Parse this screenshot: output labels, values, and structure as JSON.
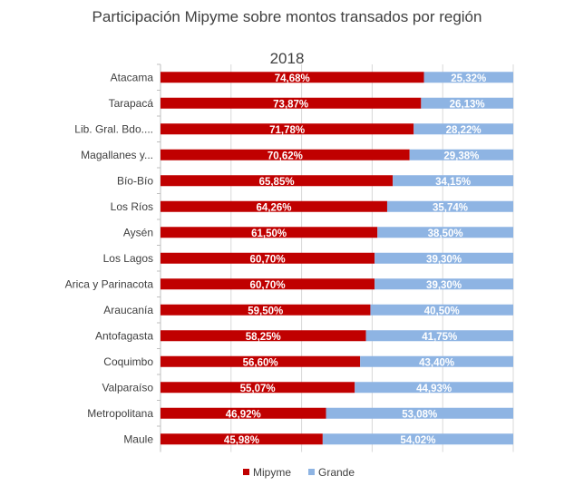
{
  "chart_data": {
    "type": "bar",
    "orientation": "horizontal",
    "stacked": "100%",
    "title": "Participación Mipyme sobre montos transados por región",
    "subtitle": "2018",
    "categories": [
      "Atacama",
      "Tarapacá",
      "Lib. Gral. Bdo....",
      "Magallanes y...",
      "Bío-Bío",
      "Los Ríos",
      "Aysén",
      "Los Lagos",
      "Arica y Parinacota",
      "Araucanía",
      "Antofagasta",
      "Coquimbo",
      "Valparaíso",
      "Metropolitana",
      "Maule"
    ],
    "series": [
      {
        "name": "Mipyme",
        "color": "#C00000",
        "values": [
          74.68,
          73.87,
          71.78,
          70.62,
          65.85,
          64.26,
          61.5,
          60.7,
          60.7,
          59.5,
          58.25,
          56.6,
          55.07,
          46.92,
          45.98
        ],
        "labels": [
          "74,68%",
          "73,87%",
          "71,78%",
          "70,62%",
          "65,85%",
          "64,26%",
          "61,50%",
          "60,70%",
          "60,70%",
          "59,50%",
          "58,25%",
          "56,60%",
          "55,07%",
          "46,92%",
          "45,98%"
        ]
      },
      {
        "name": "Grande",
        "color": "#8EB4E3",
        "values": [
          25.32,
          26.13,
          28.22,
          29.38,
          34.15,
          35.74,
          38.5,
          39.3,
          39.3,
          40.5,
          41.75,
          43.4,
          44.93,
          53.08,
          54.02
        ],
        "labels": [
          "25,32%",
          "26,13%",
          "28,22%",
          "29,38%",
          "34,15%",
          "35,74%",
          "38,50%",
          "39,30%",
          "39,30%",
          "40,50%",
          "41,75%",
          "43,40%",
          "44,93%",
          "53,08%",
          "54,02%"
        ]
      }
    ],
    "xlim": [
      0,
      100
    ],
    "grid": true,
    "legend": "bottom"
  }
}
